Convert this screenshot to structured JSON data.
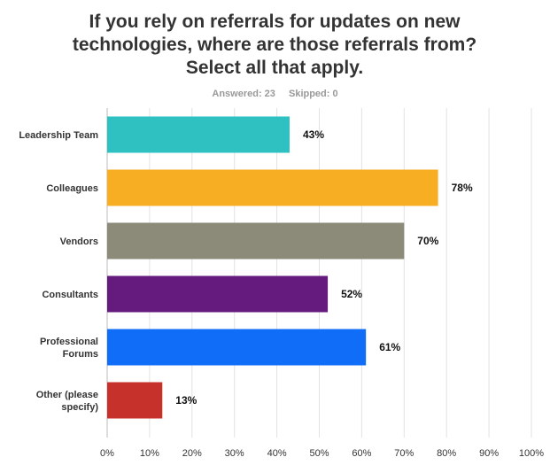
{
  "title": "If you rely on referrals for updates on new technologies, where are those referrals from? Select all that apply.",
  "stats": {
    "answered": "Answered: 23",
    "skipped": "Skipped: 0"
  },
  "chart_data": {
    "type": "bar",
    "orientation": "horizontal",
    "categories": [
      [
        "Leadership Team"
      ],
      [
        "Colleagues"
      ],
      [
        "Vendors"
      ],
      [
        "Consultants"
      ],
      [
        "Professional",
        "Forums"
      ],
      [
        "Other (please",
        "specify)"
      ]
    ],
    "values": [
      43,
      78,
      70,
      52,
      61,
      13
    ],
    "value_labels": [
      "43%",
      "78%",
      "70%",
      "52%",
      "61%",
      "13%"
    ],
    "colors": [
      "#2FC1C1",
      "#F7AE22",
      "#8C8B7A",
      "#651B7E",
      "#0F6DF7",
      "#C6322B"
    ],
    "xlim": [
      0,
      100
    ],
    "x_ticks": [
      0,
      10,
      20,
      30,
      40,
      50,
      60,
      70,
      80,
      90,
      100
    ],
    "x_tick_labels": [
      "0%",
      "10%",
      "20%",
      "30%",
      "40%",
      "50%",
      "60%",
      "70%",
      "80%",
      "90%",
      "100%"
    ],
    "grid": true
  }
}
